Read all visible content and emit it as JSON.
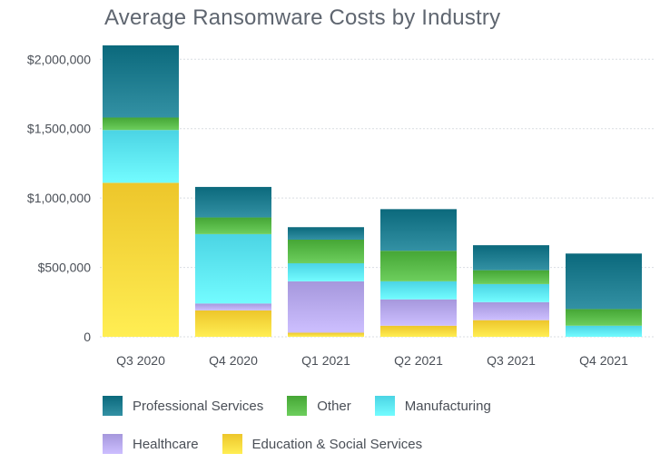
{
  "chart_data": {
    "type": "bar",
    "stacked": true,
    "title": "Average Ransomware Costs by Industry",
    "xlabel": "",
    "ylabel": "",
    "categories": [
      "Q3 2020",
      "Q4 2020",
      "Q1 2021",
      "Q2 2021",
      "Q3 2021",
      "Q4 2021"
    ],
    "ylim": [
      0,
      2100000
    ],
    "yticks": [
      0,
      500000,
      1000000,
      1500000,
      2000000
    ],
    "ytick_labels": [
      "0",
      "$500,000",
      "$1,000,000",
      "$1,500,000",
      "$2,000,000"
    ],
    "grid": true,
    "legend_position": "bottom-left",
    "series": [
      {
        "name": "Education & Social Services",
        "color": "#ffd83d",
        "values": [
          1110000,
          190000,
          30000,
          80000,
          120000,
          0
        ]
      },
      {
        "name": "Healthcare",
        "color": "#b7a9ee",
        "values": [
          0,
          50000,
          370000,
          190000,
          130000,
          0
        ]
      },
      {
        "name": "Manufacturing",
        "color": "#5de6f6",
        "values": [
          380000,
          500000,
          130000,
          130000,
          130000,
          80000
        ]
      },
      {
        "name": "Other",
        "color": "#57b847",
        "values": [
          90000,
          120000,
          170000,
          220000,
          100000,
          120000
        ]
      },
      {
        "name": "Professional Services",
        "color": "#1d7b8e",
        "values": [
          520000,
          220000,
          90000,
          300000,
          180000,
          400000
        ]
      }
    ]
  },
  "legend": {
    "rows": [
      [
        "Professional Services",
        "Other",
        "Manufacturing"
      ],
      [
        "Healthcare",
        "Education & Social Services"
      ]
    ]
  }
}
